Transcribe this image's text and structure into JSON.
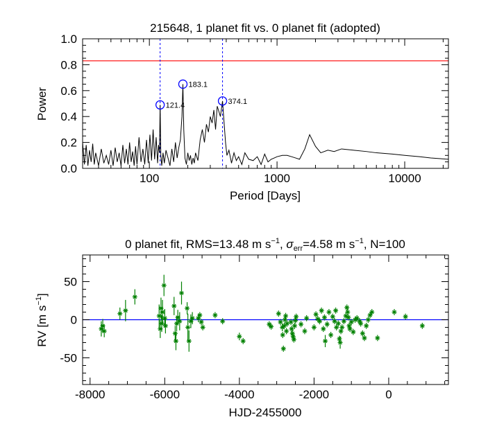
{
  "chart_data": [
    {
      "type": "line",
      "title": "215648,  1 planet fit vs. 0 planet fit (adopted)",
      "xlabel": "Period [Days]",
      "ylabel": "Power",
      "xscale": "log",
      "xlim": [
        30,
        22000
      ],
      "ylim": [
        0.0,
        1.0
      ],
      "xticks": [
        {
          "value": 100,
          "label": "100"
        },
        {
          "value": 1000,
          "label": "1000"
        },
        {
          "value": 10000,
          "label": "10000"
        }
      ],
      "yticks": [
        {
          "value": 0.0,
          "label": "0.0"
        },
        {
          "value": 0.2,
          "label": "0.2"
        },
        {
          "value": 0.4,
          "label": "0.4"
        },
        {
          "value": 0.6,
          "label": "0.6"
        },
        {
          "value": 0.8,
          "label": "0.8"
        },
        {
          "value": 1.0,
          "label": "1.0"
        }
      ],
      "threshold": {
        "value": 0.83,
        "color": "#ff0000"
      },
      "vlines": [
        121.4,
        374.1
      ],
      "vline_color": "#0000ff",
      "peaks": [
        {
          "period": 121.4,
          "power": 0.49,
          "label": "121.4"
        },
        {
          "period": 183.1,
          "power": 0.65,
          "label": "183.1"
        },
        {
          "period": 374.1,
          "power": 0.52,
          "label": "374.1"
        }
      ],
      "series": [
        {
          "name": "periodogram",
          "color": "#000000",
          "x": [
            30,
            31,
            32,
            33,
            34,
            35,
            36,
            37,
            38,
            40,
            42,
            44,
            46,
            48,
            50,
            52,
            54,
            56,
            58,
            60,
            62,
            64,
            66,
            68,
            70,
            72,
            74,
            76,
            78,
            80,
            83,
            86,
            89,
            92,
            95,
            98,
            101,
            104,
            107,
            110,
            113,
            116,
            118,
            120,
            121.4,
            123,
            125,
            128,
            131,
            135,
            140,
            145,
            150,
            155,
            160,
            165,
            170,
            175,
            180,
            183.1,
            186,
            190,
            195,
            200,
            205,
            210,
            215,
            220,
            225,
            230,
            240,
            250,
            260,
            270,
            280,
            290,
            300,
            310,
            320,
            330,
            340,
            350,
            360,
            374.1,
            385,
            395,
            405,
            420,
            440,
            460,
            480,
            500,
            530,
            560,
            600,
            650,
            700,
            750,
            800,
            850,
            900,
            950,
            1000,
            1100,
            1200,
            1300,
            1400,
            1500,
            1650,
            1800,
            2000,
            2200,
            2500,
            2800,
            3200,
            4000,
            5000,
            6000,
            8000,
            10000,
            13000,
            16000,
            22000
          ],
          "y": [
            0.2,
            0.03,
            0.18,
            0.02,
            0.14,
            0.05,
            0.19,
            0.03,
            0.12,
            0.02,
            0.15,
            0.04,
            0.1,
            0.03,
            0.14,
            0.02,
            0.16,
            0.05,
            0.12,
            0.02,
            0.18,
            0.04,
            0.15,
            0.03,
            0.2,
            0.05,
            0.13,
            0.02,
            0.17,
            0.03,
            0.24,
            0.05,
            0.15,
            0.03,
            0.22,
            0.04,
            0.26,
            0.06,
            0.3,
            0.07,
            0.24,
            0.04,
            0.18,
            0.12,
            0.49,
            0.1,
            0.02,
            0.12,
            0.04,
            0.14,
            0.08,
            0.02,
            0.15,
            0.05,
            0.2,
            0.08,
            0.16,
            0.22,
            0.4,
            0.65,
            0.3,
            0.08,
            0.03,
            0.12,
            0.06,
            0.1,
            0.03,
            0.08,
            0.04,
            0.12,
            0.06,
            0.22,
            0.3,
            0.2,
            0.34,
            0.28,
            0.4,
            0.35,
            0.45,
            0.3,
            0.48,
            0.44,
            0.4,
            0.52,
            0.35,
            0.2,
            0.1,
            0.14,
            0.04,
            0.12,
            0.06,
            0.09,
            0.03,
            0.12,
            0.07,
            0.06,
            0.09,
            0.03,
            0.11,
            0.05,
            0.07,
            0.08,
            0.09,
            0.1,
            0.1,
            0.09,
            0.08,
            0.07,
            0.15,
            0.26,
            0.17,
            0.12,
            0.14,
            0.13,
            0.15,
            0.14,
            0.13,
            0.12,
            0.11,
            0.1,
            0.09,
            0.08,
            0.07
          ]
        }
      ]
    },
    {
      "type": "scatter",
      "title": "0 planet fit, RMS=13.48 m s⁻¹, σerr=4.58 m s⁻¹, N=100",
      "title_parts": {
        "prefix": "0 planet fit, RMS=13.48 m s",
        "exp1": "−1",
        "mid": ", ",
        "sigma": "σ",
        "err": "err",
        "after_sigma": "=4.58 m s",
        "exp2": "−1",
        "suffix": ", N=100"
      },
      "xlabel": "HJD-2455000",
      "ylabel": "RV [m s⁻¹]",
      "ylabel_parts": {
        "main": "RV [m s",
        "exp": "−1",
        "close": "]"
      },
      "xlim": [
        -8200,
        1600
      ],
      "ylim": [
        -85,
        85
      ],
      "xticks": [
        {
          "value": -8000,
          "label": "-8000"
        },
        {
          "value": -6000,
          "label": "-6000"
        },
        {
          "value": -4000,
          "label": "-4000"
        },
        {
          "value": -2000,
          "label": "-2000"
        },
        {
          "value": 0,
          "label": "0"
        }
      ],
      "yticks": [
        {
          "value": -50,
          "label": "-50"
        },
        {
          "value": 0,
          "label": "0"
        },
        {
          "value": 50,
          "label": "50"
        }
      ],
      "zero_line": {
        "value": 0,
        "color": "#0000ff"
      },
      "marker_color": "#008000",
      "points": [
        [
          -7700,
          -12,
          10
        ],
        [
          -7660,
          -8,
          9
        ],
        [
          -7620,
          -15,
          8
        ],
        [
          -7200,
          8,
          8
        ],
        [
          -7050,
          12,
          14
        ],
        [
          -6800,
          30,
          10
        ],
        [
          -6150,
          5,
          15
        ],
        [
          -6120,
          -12,
          12
        ],
        [
          -6100,
          15,
          14
        ],
        [
          -6080,
          -5,
          11
        ],
        [
          -6060,
          10,
          16
        ],
        [
          -6020,
          45,
          14
        ],
        [
          -6000,
          2,
          12
        ],
        [
          -5980,
          -8,
          10
        ],
        [
          -5750,
          18,
          12
        ],
        [
          -5720,
          -18,
          10
        ],
        [
          -5700,
          -28,
          12
        ],
        [
          -5680,
          -5,
          10
        ],
        [
          -5650,
          3,
          10
        ],
        [
          -5600,
          -2,
          12
        ],
        [
          -5550,
          35,
          15
        ],
        [
          -5400,
          15,
          8
        ],
        [
          -5380,
          -10,
          18
        ],
        [
          -5350,
          -28,
          14
        ],
        [
          -5300,
          -2,
          9
        ],
        [
          -5260,
          2,
          8
        ],
        [
          -5100,
          2,
          5
        ],
        [
          -5060,
          6,
          4
        ],
        [
          -5020,
          -3,
          4
        ],
        [
          -4980,
          -10,
          4
        ],
        [
          -4650,
          6,
          4
        ],
        [
          -4450,
          -2,
          4
        ],
        [
          -4000,
          -22,
          5
        ],
        [
          -3200,
          -6,
          4
        ],
        [
          -3150,
          -9,
          4
        ],
        [
          -2950,
          8,
          4
        ],
        [
          -2900,
          -3,
          4
        ],
        [
          -2850,
          -10,
          5
        ],
        [
          -2840,
          -20,
          4
        ],
        [
          -2820,
          -38,
          4
        ],
        [
          -2800,
          -8,
          4
        ],
        [
          -2780,
          0,
          4
        ],
        [
          -2760,
          5,
          4
        ],
        [
          -2740,
          -15,
          4
        ],
        [
          -2720,
          -5,
          4
        ],
        [
          -2620,
          -3,
          4
        ],
        [
          -2600,
          -12,
          4
        ],
        [
          -2580,
          -18,
          4
        ],
        [
          -2560,
          -22,
          4
        ],
        [
          -2540,
          -26,
          4
        ],
        [
          -2520,
          -8,
          4
        ],
        [
          -2500,
          -1,
          4
        ],
        [
          -2480,
          4,
          4
        ],
        [
          -2350,
          -6,
          4
        ],
        [
          -2250,
          -15,
          4
        ],
        [
          -2200,
          2,
          4
        ],
        [
          -2000,
          -10,
          4
        ],
        [
          -1950,
          7,
          4
        ],
        [
          -1900,
          1,
          4
        ],
        [
          -1850,
          -2,
          4
        ],
        [
          -1800,
          12,
          4
        ],
        [
          -1750,
          -12,
          4
        ],
        [
          -1720,
          3,
          4
        ],
        [
          -1700,
          -28,
          8
        ],
        [
          -1650,
          -6,
          4
        ],
        [
          -1600,
          10,
          4
        ],
        [
          -1550,
          -20,
          4
        ],
        [
          -1500,
          4,
          4
        ],
        [
          -1450,
          -2,
          4
        ],
        [
          -1420,
          12,
          4
        ],
        [
          -1400,
          -10,
          4
        ],
        [
          -1350,
          -5,
          4
        ],
        [
          -1320,
          -25,
          4
        ],
        [
          -1300,
          -30,
          8
        ],
        [
          -1280,
          -15,
          4
        ],
        [
          -1250,
          -10,
          4
        ],
        [
          -1200,
          -2,
          4
        ],
        [
          -1150,
          5,
          4
        ],
        [
          -1120,
          16,
          4
        ],
        [
          -1100,
          10,
          4
        ],
        [
          -1080,
          3,
          4
        ],
        [
          -1060,
          -8,
          4
        ],
        [
          -1040,
          -12,
          4
        ],
        [
          -1000,
          -3,
          4
        ],
        [
          -950,
          -16,
          4
        ],
        [
          -900,
          0,
          4
        ],
        [
          -850,
          2,
          4
        ],
        [
          -780,
          -2,
          4
        ],
        [
          -750,
          -5,
          4
        ],
        [
          -700,
          -18,
          4
        ],
        [
          -650,
          -24,
          4
        ],
        [
          -600,
          -8,
          4
        ],
        [
          -550,
          0,
          4
        ],
        [
          -500,
          6,
          4
        ],
        [
          -450,
          10,
          4
        ],
        [
          -300,
          -24,
          4
        ],
        [
          150,
          10,
          4
        ],
        [
          450,
          4,
          4
        ],
        [
          900,
          -8,
          4
        ],
        [
          -3900,
          -28,
          4
        ]
      ]
    }
  ]
}
